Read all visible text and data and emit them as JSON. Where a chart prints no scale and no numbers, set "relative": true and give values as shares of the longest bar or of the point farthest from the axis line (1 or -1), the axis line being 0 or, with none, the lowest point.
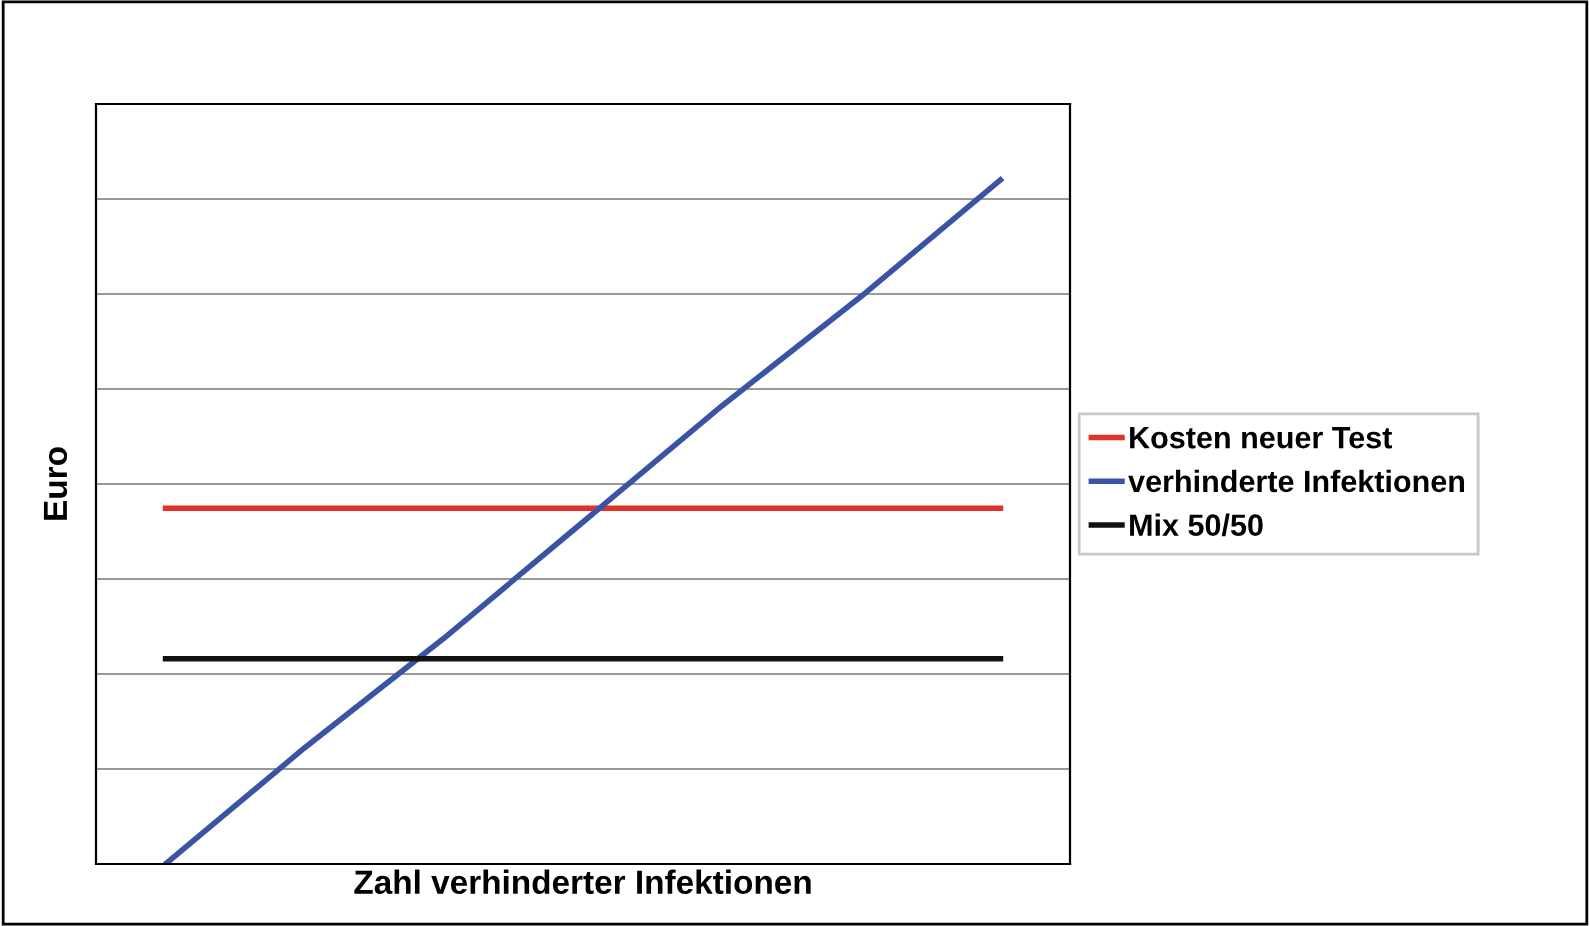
{
  "chart_data": {
    "type": "line",
    "relative": true,
    "xlabel": "Zahl verhinderter Infektionen",
    "ylabel": "Euro",
    "categories": [
      null,
      null,
      null,
      null,
      null,
      null,
      null
    ],
    "series": [
      {
        "name": "Kosten neuer Test",
        "color": "#e0312a",
        "values": [
          0.52,
          0.52,
          0.52,
          0.52,
          0.52,
          0.52,
          0.52
        ]
      },
      {
        "name": "verhinderte Infektionen",
        "color": "#3a54a4",
        "values": [
          0,
          0.17,
          0.33,
          0.5,
          0.67,
          0.83,
          1
        ]
      },
      {
        "name": "Mix 50/50",
        "color": "#111111",
        "values": [
          0.3,
          0.3,
          0.3,
          0.3,
          0.3,
          0.3,
          0.3
        ]
      }
    ],
    "grid": "y",
    "legend": "right",
    "marker": "none",
    "line_style": "solid"
  }
}
